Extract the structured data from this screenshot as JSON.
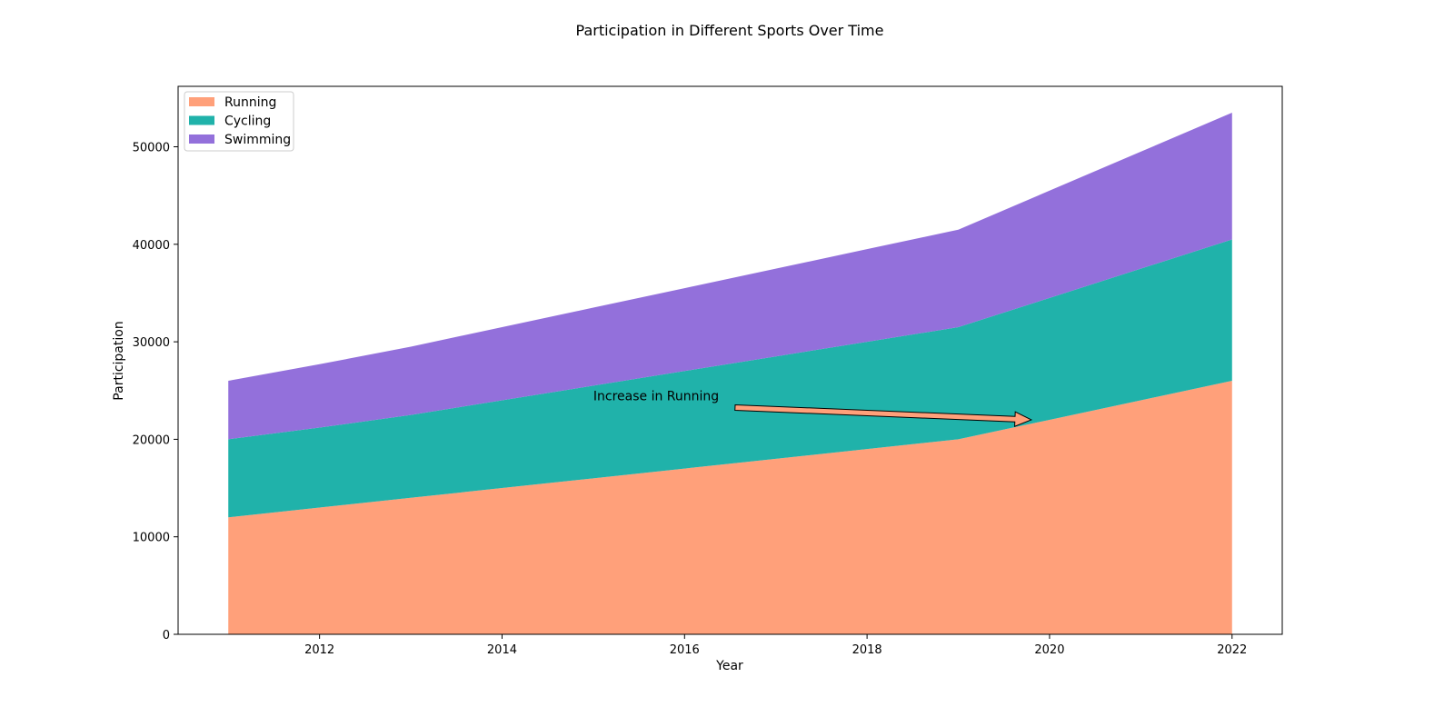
{
  "chart_data": {
    "type": "area",
    "stacked": true,
    "title": "Participation in Different Sports Over Time",
    "xlabel": "Year",
    "ylabel": "Participation",
    "x": [
      2011,
      2012,
      2013,
      2014,
      2015,
      2016,
      2017,
      2018,
      2019,
      2020,
      2021,
      2022
    ],
    "xlim": [
      2010.45,
      2022.55
    ],
    "ylim": [
      0,
      56200
    ],
    "xticks": [
      2012,
      2014,
      2016,
      2018,
      2020,
      2022
    ],
    "yticks": [
      0,
      10000,
      20000,
      30000,
      40000,
      50000
    ],
    "grid": false,
    "legend_position": "top-left",
    "series": [
      {
        "name": "Running",
        "color": "#FFA07A",
        "values": [
          12000,
          13000,
          14000,
          15000,
          16000,
          17000,
          18000,
          19000,
          20000,
          22000,
          24000,
          26000
        ]
      },
      {
        "name": "Cycling",
        "color": "#20B2AA",
        "values": [
          8000,
          8200,
          8500,
          9000,
          9500,
          10000,
          10500,
          11000,
          11500,
          12500,
          13500,
          14500
        ]
      },
      {
        "name": "Swimming",
        "color": "#9370DB",
        "values": [
          6000,
          6500,
          7000,
          7500,
          8000,
          8500,
          9000,
          9500,
          10000,
          11000,
          12000,
          13000
        ]
      }
    ],
    "annotations": [
      {
        "text": "Increase in Running",
        "text_at": [
          2015,
          24000
        ],
        "arrow_to": [
          2019.8,
          22000
        ],
        "arrow_color": "#FFA07A"
      }
    ]
  }
}
